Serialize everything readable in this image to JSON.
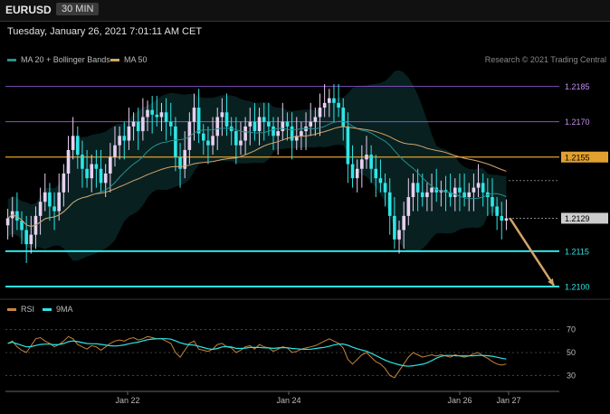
{
  "header": {
    "symbol": "EURUSD",
    "interval": "30 MIN",
    "datetime": "Tuesday, January 26, 2021 7:01:11 AM CET",
    "credit": "Research © 2021 Trading Central"
  },
  "legend": {
    "bb": {
      "label": "MA 20 + Bollinger Bands",
      "color": "#2a8f8f"
    },
    "ma50": {
      "label": "MA 50",
      "color": "#d4a36a"
    },
    "rsi": {
      "label": "RSI",
      "color": "#c8843c"
    },
    "rsi9": {
      "label": "9MA",
      "color": "#2ee6e6"
    }
  },
  "chart_data": [
    {
      "type": "candlestick",
      "name": "EURUSD 30 MIN",
      "ylim": [
        1.2095,
        1.2191
      ],
      "x_ticks": [
        "Jan 22",
        "Jan 24",
        "Jan 26",
        "Jan 27"
      ],
      "levels": [
        {
          "value": 1.2185,
          "label": "1.2185",
          "color": "#9b5de5",
          "style": "thin"
        },
        {
          "value": 1.217,
          "label": "1.2170",
          "color": "#9b5de5",
          "style": "thin"
        },
        {
          "value": 1.2155,
          "label": "1.2155",
          "color": "#e0a030",
          "style": "box"
        },
        {
          "value": 1.2129,
          "label": "1.2129",
          "color": "#cccccc",
          "style": "current"
        },
        {
          "value": 1.2115,
          "label": "1.2115",
          "color": "#2ee6e6",
          "style": "thick"
        },
        {
          "value": 1.21,
          "label": "1.2100",
          "color": "#2ee6e6",
          "style": "thick"
        }
      ],
      "close_series": [
        1.2129,
        1.2132,
        1.2128,
        1.2124,
        1.2118,
        1.2122,
        1.213,
        1.2136,
        1.214,
        1.2134,
        1.2132,
        1.214,
        1.2148,
        1.2158,
        1.2164,
        1.2156,
        1.215,
        1.2146,
        1.2152,
        1.215,
        1.2144,
        1.2148,
        1.2155,
        1.216,
        1.2164,
        1.2162,
        1.2168,
        1.217,
        1.2166,
        1.2172,
        1.2175,
        1.2173,
        1.2172,
        1.2174,
        1.217,
        1.2168,
        1.2155,
        1.215,
        1.2158,
        1.217,
        1.2176,
        1.2165,
        1.2162,
        1.216,
        1.2164,
        1.2172,
        1.2174,
        1.2168,
        1.2166,
        1.216,
        1.2162,
        1.2168,
        1.217,
        1.2166,
        1.2172,
        1.217,
        1.2168,
        1.2164,
        1.2166,
        1.217,
        1.2168,
        1.2162,
        1.2164,
        1.2166,
        1.2168,
        1.217,
        1.2172,
        1.2176,
        1.2178,
        1.218,
        1.2178,
        1.2176,
        1.2168,
        1.2152,
        1.2146,
        1.215,
        1.2154,
        1.2156,
        1.215,
        1.2146,
        1.2144,
        1.214,
        1.213,
        1.212,
        1.2124,
        1.213,
        1.2138,
        1.2144,
        1.214,
        1.2138,
        1.214,
        1.2142,
        1.214,
        1.2141,
        1.214,
        1.2138,
        1.2142,
        1.214,
        1.2138,
        1.214,
        1.2142,
        1.2144,
        1.214,
        1.2138,
        1.2134,
        1.213,
        1.2128,
        1.2129
      ],
      "projection": {
        "from": 1.2129,
        "to": 1.21,
        "color": "#d4a36a"
      }
    },
    {
      "type": "line",
      "name": "RSI",
      "ylim": [
        20,
        80
      ],
      "y_ticks": [
        70,
        50,
        30
      ],
      "rsi_series": [
        58,
        60,
        55,
        52,
        50,
        56,
        62,
        63,
        60,
        58,
        55,
        57,
        60,
        64,
        62,
        57,
        55,
        53,
        56,
        55,
        52,
        55,
        58,
        60,
        61,
        60,
        62,
        63,
        61,
        62,
        64,
        63,
        62,
        62,
        60,
        58,
        50,
        46,
        52,
        58,
        60,
        53,
        52,
        51,
        53,
        57,
        58,
        55,
        54,
        50,
        52,
        55,
        56,
        53,
        57,
        55,
        54,
        51,
        53,
        55,
        54,
        50,
        51,
        53,
        54,
        55,
        56,
        58,
        60,
        62,
        60,
        58,
        54,
        44,
        40,
        44,
        48,
        50,
        46,
        42,
        40,
        36,
        30,
        28,
        34,
        40,
        46,
        50,
        48,
        46,
        47,
        48,
        47,
        48,
        47,
        46,
        48,
        47,
        46,
        47,
        49,
        50,
        47,
        45,
        42,
        40,
        39,
        40
      ]
    }
  ]
}
